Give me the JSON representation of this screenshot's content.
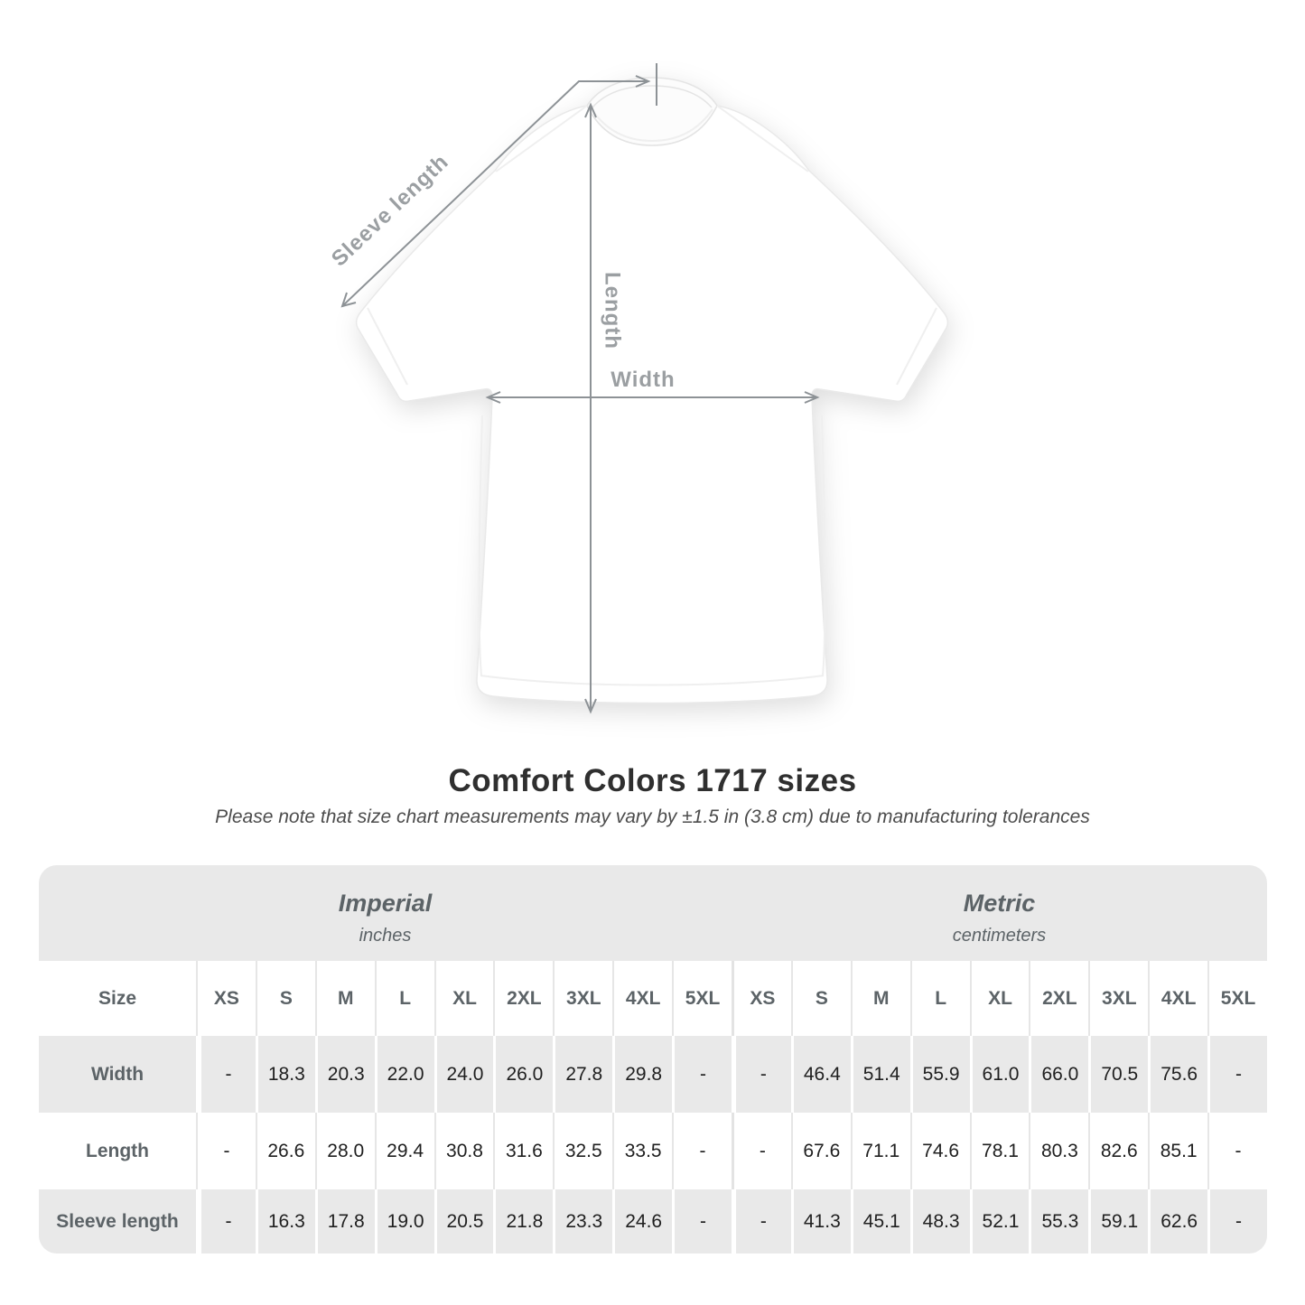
{
  "diagram": {
    "sleeve_label": "Sleeve length",
    "length_label": "Length",
    "width_label": "Width"
  },
  "title": "Comfort Colors 1717 sizes",
  "subtitle": "Please note that size chart measurements may vary by ±1.5 in (3.8 cm) due to manufacturing tolerances",
  "chart_data": {
    "type": "table",
    "title": "Comfort Colors 1717 sizes",
    "note": "Please note that size chart measurements may vary by ±1.5 in (3.8 cm) due to manufacturing tolerances",
    "corner_label": "Size",
    "unit_groups": [
      {
        "label": "Imperial",
        "unit": "inches"
      },
      {
        "label": "Metric",
        "unit": "centimeters"
      }
    ],
    "sizes": [
      "XS",
      "S",
      "M",
      "L",
      "XL",
      "2XL",
      "3XL",
      "4XL",
      "5XL"
    ],
    "rows": [
      {
        "label": "Width",
        "imperial": [
          "-",
          "18.3",
          "20.3",
          "22.0",
          "24.0",
          "26.0",
          "27.8",
          "29.8",
          "-"
        ],
        "metric": [
          "-",
          "46.4",
          "51.4",
          "55.9",
          "61.0",
          "66.0",
          "70.5",
          "75.6",
          "-"
        ]
      },
      {
        "label": "Length",
        "imperial": [
          "-",
          "26.6",
          "28.0",
          "29.4",
          "30.8",
          "31.6",
          "32.5",
          "33.5",
          "-"
        ],
        "metric": [
          "-",
          "67.6",
          "71.1",
          "74.6",
          "78.1",
          "80.3",
          "82.6",
          "85.1",
          "-"
        ]
      },
      {
        "label": "Sleeve length",
        "imperial": [
          "-",
          "16.3",
          "17.8",
          "19.0",
          "20.5",
          "21.8",
          "23.3",
          "24.6",
          "-"
        ],
        "metric": [
          "-",
          "41.3",
          "45.1",
          "48.3",
          "52.1",
          "55.3",
          "59.1",
          "62.6",
          "-"
        ]
      }
    ]
  },
  "colors": {
    "band_gray": "#e9e9e9",
    "header_text": "#5c6367",
    "value_text": "#202020",
    "measure_line": "#8d9296",
    "measure_label": "#9b9fa2",
    "title_text": "#2f2f2f"
  }
}
